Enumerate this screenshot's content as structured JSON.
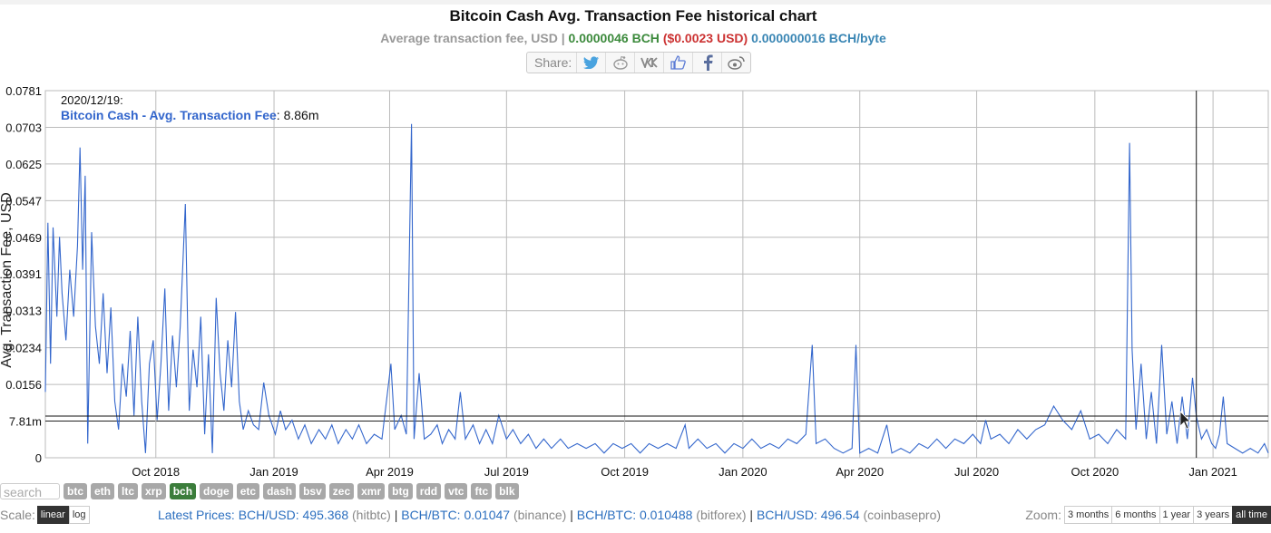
{
  "title": "Bitcoin Cash Avg. Transaction Fee historical chart",
  "subtitle": {
    "label": "Average transaction fee, USD",
    "sep": "|",
    "bch_value": "0.0000046 BCH",
    "usd_value": "($0.0023 USD)",
    "byte_value": "0.000000016 BCH/byte"
  },
  "share": {
    "label": "Share:",
    "buttons": [
      "twitter-icon",
      "reddit-icon",
      "vk-icon",
      "like-icon",
      "facebook-icon",
      "weibo-icon"
    ]
  },
  "tooltip": {
    "date": "2020/12/19:",
    "series": "Bitcoin Cash - Avg. Transaction Fee",
    "value": ": 8.86m"
  },
  "coins": {
    "search_placeholder": "search",
    "items": [
      "btc",
      "eth",
      "ltc",
      "xrp",
      "bch",
      "doge",
      "etc",
      "dash",
      "bsv",
      "zec",
      "xmr",
      "btg",
      "rdd",
      "vtc",
      "ftc",
      "blk"
    ],
    "active": "bch"
  },
  "scale": {
    "label": "Scale:",
    "options": [
      "linear",
      "log"
    ],
    "active": "linear"
  },
  "prices": {
    "label": "Latest Prices:",
    "items": [
      {
        "pair": "BCH/USD: 495.368",
        "source": "(hitbtc)"
      },
      {
        "pair": "BCH/BTC: 0.01047",
        "source": "(binance)"
      },
      {
        "pair": "BCH/BTC: 0.010488",
        "source": "(bitforex)"
      },
      {
        "pair": "BCH/USD: 496.54",
        "source": "(coinbasepro)"
      }
    ],
    "separator": "|"
  },
  "zoom": {
    "label": "Zoom:",
    "options": [
      "3 months",
      "6 months",
      "1 year",
      "3 years",
      "all time"
    ],
    "active": "all time"
  },
  "colors": {
    "line": "#3366cc",
    "grid": "#bbbbbb",
    "active_coin": "#3b7d3b"
  },
  "chart_data": {
    "type": "line",
    "title": "Bitcoin Cash Avg. Transaction Fee historical chart",
    "ylabel": "Avg. Transaction Fee, USD",
    "series_name": "Bitcoin Cash - Avg. Transaction Fee",
    "ylim": [
      0,
      0.0781
    ],
    "yticks": [
      "0",
      "7.81m",
      "0.0156",
      "0.0234",
      "0.0313",
      "0.0391",
      "0.0469",
      "0.0547",
      "0.0625",
      "0.0703",
      "0.0781"
    ],
    "ytick_values": [
      0,
      0.00781,
      0.0156,
      0.0234,
      0.0313,
      0.0391,
      0.0469,
      0.0547,
      0.0625,
      0.0703,
      0.0781
    ],
    "xlim": [
      "2018-07-07",
      "2021-02-13"
    ],
    "xticks": [
      {
        "label": "Oct 2018",
        "date": "2018-10-01"
      },
      {
        "label": "Jan 2019",
        "date": "2019-01-01"
      },
      {
        "label": "Apr 2019",
        "date": "2019-04-01"
      },
      {
        "label": "Jul 2019",
        "date": "2019-07-01"
      },
      {
        "label": "Oct 2019",
        "date": "2019-10-01"
      },
      {
        "label": "Jan 2020",
        "date": "2020-01-01"
      },
      {
        "label": "Apr 2020",
        "date": "2020-04-01"
      },
      {
        "label": "Jul 2020",
        "date": "2020-07-01"
      },
      {
        "label": "Oct 2020",
        "date": "2020-10-01"
      },
      {
        "label": "Jan 2021",
        "date": "2021-01-01"
      }
    ],
    "crosshair": {
      "date": "2020-12-19",
      "value": 0.00886
    },
    "grid": true,
    "points": [
      [
        "2018-07-07",
        0.014
      ],
      [
        "2018-07-09",
        0.05
      ],
      [
        "2018-07-11",
        0.02
      ],
      [
        "2018-07-13",
        0.049
      ],
      [
        "2018-07-16",
        0.03
      ],
      [
        "2018-07-18",
        0.047
      ],
      [
        "2018-07-20",
        0.035
      ],
      [
        "2018-07-23",
        0.025
      ],
      [
        "2018-07-26",
        0.04
      ],
      [
        "2018-07-29",
        0.03
      ],
      [
        "2018-08-01",
        0.045
      ],
      [
        "2018-08-03",
        0.066
      ],
      [
        "2018-08-05",
        0.04
      ],
      [
        "2018-08-07",
        0.06
      ],
      [
        "2018-08-09",
        0.003
      ],
      [
        "2018-08-12",
        0.048
      ],
      [
        "2018-08-15",
        0.028
      ],
      [
        "2018-08-18",
        0.02
      ],
      [
        "2018-08-21",
        0.035
      ],
      [
        "2018-08-24",
        0.018
      ],
      [
        "2018-08-27",
        0.032
      ],
      [
        "2018-08-30",
        0.012
      ],
      [
        "2018-09-02",
        0.006
      ],
      [
        "2018-09-05",
        0.02
      ],
      [
        "2018-09-08",
        0.013
      ],
      [
        "2018-09-11",
        0.027
      ],
      [
        "2018-09-14",
        0.009
      ],
      [
        "2018-09-17",
        0.03
      ],
      [
        "2018-09-20",
        0.012
      ],
      [
        "2018-09-23",
        0.001
      ],
      [
        "2018-09-26",
        0.02
      ],
      [
        "2018-09-29",
        0.025
      ],
      [
        "2018-10-02",
        0.008
      ],
      [
        "2018-10-05",
        0.02
      ],
      [
        "2018-10-08",
        0.036
      ],
      [
        "2018-10-11",
        0.01
      ],
      [
        "2018-10-14",
        0.026
      ],
      [
        "2018-10-17",
        0.015
      ],
      [
        "2018-10-20",
        0.028
      ],
      [
        "2018-10-24",
        0.054
      ],
      [
        "2018-10-27",
        0.01
      ],
      [
        "2018-10-30",
        0.023
      ],
      [
        "2018-11-02",
        0.015
      ],
      [
        "2018-11-05",
        0.03
      ],
      [
        "2018-11-08",
        0.005
      ],
      [
        "2018-11-11",
        0.022
      ],
      [
        "2018-11-14",
        0.001
      ],
      [
        "2018-11-17",
        0.034
      ],
      [
        "2018-11-20",
        0.018
      ],
      [
        "2018-11-23",
        0.01
      ],
      [
        "2018-11-26",
        0.025
      ],
      [
        "2018-11-29",
        0.015
      ],
      [
        "2018-12-02",
        0.031
      ],
      [
        "2018-12-05",
        0.012
      ],
      [
        "2018-12-08",
        0.006
      ],
      [
        "2018-12-12",
        0.01
      ],
      [
        "2018-12-16",
        0.007
      ],
      [
        "2018-12-20",
        0.006
      ],
      [
        "2018-12-24",
        0.016
      ],
      [
        "2018-12-28",
        0.009
      ],
      [
        "2019-01-02",
        0.005
      ],
      [
        "2019-01-06",
        0.01
      ],
      [
        "2019-01-10",
        0.006
      ],
      [
        "2019-01-15",
        0.008
      ],
      [
        "2019-01-20",
        0.004
      ],
      [
        "2019-01-25",
        0.007
      ],
      [
        "2019-01-30",
        0.003
      ],
      [
        "2019-02-05",
        0.006
      ],
      [
        "2019-02-10",
        0.004
      ],
      [
        "2019-02-15",
        0.007
      ],
      [
        "2019-02-20",
        0.003
      ],
      [
        "2019-02-26",
        0.006
      ],
      [
        "2019-03-03",
        0.004
      ],
      [
        "2019-03-08",
        0.007
      ],
      [
        "2019-03-14",
        0.003
      ],
      [
        "2019-03-20",
        0.005
      ],
      [
        "2019-03-26",
        0.004
      ],
      [
        "2019-04-02",
        0.02
      ],
      [
        "2019-04-05",
        0.006
      ],
      [
        "2019-04-10",
        0.009
      ],
      [
        "2019-04-14",
        0.005
      ],
      [
        "2019-04-18",
        0.071
      ],
      [
        "2019-04-20",
        0.004
      ],
      [
        "2019-04-24",
        0.018
      ],
      [
        "2019-04-28",
        0.004
      ],
      [
        "2019-05-03",
        0.005
      ],
      [
        "2019-05-08",
        0.007
      ],
      [
        "2019-05-12",
        0.003
      ],
      [
        "2019-05-17",
        0.006
      ],
      [
        "2019-05-22",
        0.004
      ],
      [
        "2019-05-26",
        0.014
      ],
      [
        "2019-05-30",
        0.004
      ],
      [
        "2019-06-05",
        0.007
      ],
      [
        "2019-06-10",
        0.003
      ],
      [
        "2019-06-15",
        0.006
      ],
      [
        "2019-06-20",
        0.003
      ],
      [
        "2019-06-25",
        0.009
      ],
      [
        "2019-07-01",
        0.004
      ],
      [
        "2019-07-06",
        0.006
      ],
      [
        "2019-07-12",
        0.003
      ],
      [
        "2019-07-18",
        0.005
      ],
      [
        "2019-07-24",
        0.002
      ],
      [
        "2019-07-30",
        0.004
      ],
      [
        "2019-08-05",
        0.002
      ],
      [
        "2019-08-12",
        0.004
      ],
      [
        "2019-08-18",
        0.002
      ],
      [
        "2019-08-25",
        0.003
      ],
      [
        "2019-09-01",
        0.002
      ],
      [
        "2019-09-08",
        0.003
      ],
      [
        "2019-09-15",
        0.001
      ],
      [
        "2019-09-22",
        0.003
      ],
      [
        "2019-09-29",
        0.002
      ],
      [
        "2019-10-06",
        0.003
      ],
      [
        "2019-10-13",
        0.001
      ],
      [
        "2019-10-20",
        0.003
      ],
      [
        "2019-10-27",
        0.002
      ],
      [
        "2019-11-03",
        0.003
      ],
      [
        "2019-11-10",
        0.002
      ],
      [
        "2019-11-17",
        0.007
      ],
      [
        "2019-11-20",
        0.002
      ],
      [
        "2019-11-27",
        0.004
      ],
      [
        "2019-12-04",
        0.002
      ],
      [
        "2019-12-11",
        0.003
      ],
      [
        "2019-12-18",
        0.001
      ],
      [
        "2019-12-25",
        0.003
      ],
      [
        "2020-01-01",
        0.002
      ],
      [
        "2020-01-08",
        0.004
      ],
      [
        "2020-01-15",
        0.002
      ],
      [
        "2020-01-22",
        0.003
      ],
      [
        "2020-01-29",
        0.002
      ],
      [
        "2020-02-05",
        0.004
      ],
      [
        "2020-02-12",
        0.003
      ],
      [
        "2020-02-19",
        0.005
      ],
      [
        "2020-02-24",
        0.024
      ],
      [
        "2020-02-27",
        0.003
      ],
      [
        "2020-03-05",
        0.004
      ],
      [
        "2020-03-12",
        0.002
      ],
      [
        "2020-03-19",
        0.001
      ],
      [
        "2020-03-26",
        0.002
      ],
      [
        "2020-03-29",
        0.024
      ],
      [
        "2020-04-01",
        0.001
      ],
      [
        "2020-04-08",
        0.002
      ],
      [
        "2020-04-15",
        0.001
      ],
      [
        "2020-04-22",
        0.007
      ],
      [
        "2020-04-26",
        0.001
      ],
      [
        "2020-05-03",
        0.002
      ],
      [
        "2020-05-10",
        0.001
      ],
      [
        "2020-05-17",
        0.003
      ],
      [
        "2020-05-24",
        0.002
      ],
      [
        "2020-05-31",
        0.004
      ],
      [
        "2020-06-07",
        0.002
      ],
      [
        "2020-06-14",
        0.004
      ],
      [
        "2020-06-21",
        0.003
      ],
      [
        "2020-06-28",
        0.005
      ],
      [
        "2020-07-04",
        0.003
      ],
      [
        "2020-07-08",
        0.008
      ],
      [
        "2020-07-12",
        0.004
      ],
      [
        "2020-07-19",
        0.005
      ],
      [
        "2020-07-26",
        0.003
      ],
      [
        "2020-08-02",
        0.006
      ],
      [
        "2020-08-09",
        0.004
      ],
      [
        "2020-08-16",
        0.006
      ],
      [
        "2020-08-23",
        0.007
      ],
      [
        "2020-08-30",
        0.011
      ],
      [
        "2020-09-06",
        0.008
      ],
      [
        "2020-09-13",
        0.006
      ],
      [
        "2020-09-20",
        0.01
      ],
      [
        "2020-09-27",
        0.004
      ],
      [
        "2020-10-04",
        0.005
      ],
      [
        "2020-10-11",
        0.003
      ],
      [
        "2020-10-18",
        0.006
      ],
      [
        "2020-10-25",
        0.004
      ],
      [
        "2020-10-28",
        0.067
      ],
      [
        "2020-10-30",
        0.023
      ],
      [
        "2020-11-02",
        0.006
      ],
      [
        "2020-11-06",
        0.02
      ],
      [
        "2020-11-10",
        0.004
      ],
      [
        "2020-11-14",
        0.014
      ],
      [
        "2020-11-18",
        0.003
      ],
      [
        "2020-11-22",
        0.024
      ],
      [
        "2020-11-26",
        0.005
      ],
      [
        "2020-11-30",
        0.012
      ],
      [
        "2020-12-04",
        0.003
      ],
      [
        "2020-12-08",
        0.013
      ],
      [
        "2020-12-12",
        0.004
      ],
      [
        "2020-12-16",
        0.017
      ],
      [
        "2020-12-19",
        0.00886
      ],
      [
        "2020-12-23",
        0.004
      ],
      [
        "2020-12-27",
        0.006
      ],
      [
        "2020-12-31",
        0.003
      ],
      [
        "2021-01-03",
        0.002
      ],
      [
        "2021-01-06",
        0.005
      ],
      [
        "2021-01-09",
        0.013
      ],
      [
        "2021-01-12",
        0.003
      ],
      [
        "2021-01-18",
        0.002
      ],
      [
        "2021-01-24",
        0.001
      ],
      [
        "2021-01-30",
        0.002
      ],
      [
        "2021-02-05",
        0.001
      ],
      [
        "2021-02-10",
        0.003
      ],
      [
        "2021-02-13",
        0.001
      ]
    ]
  }
}
